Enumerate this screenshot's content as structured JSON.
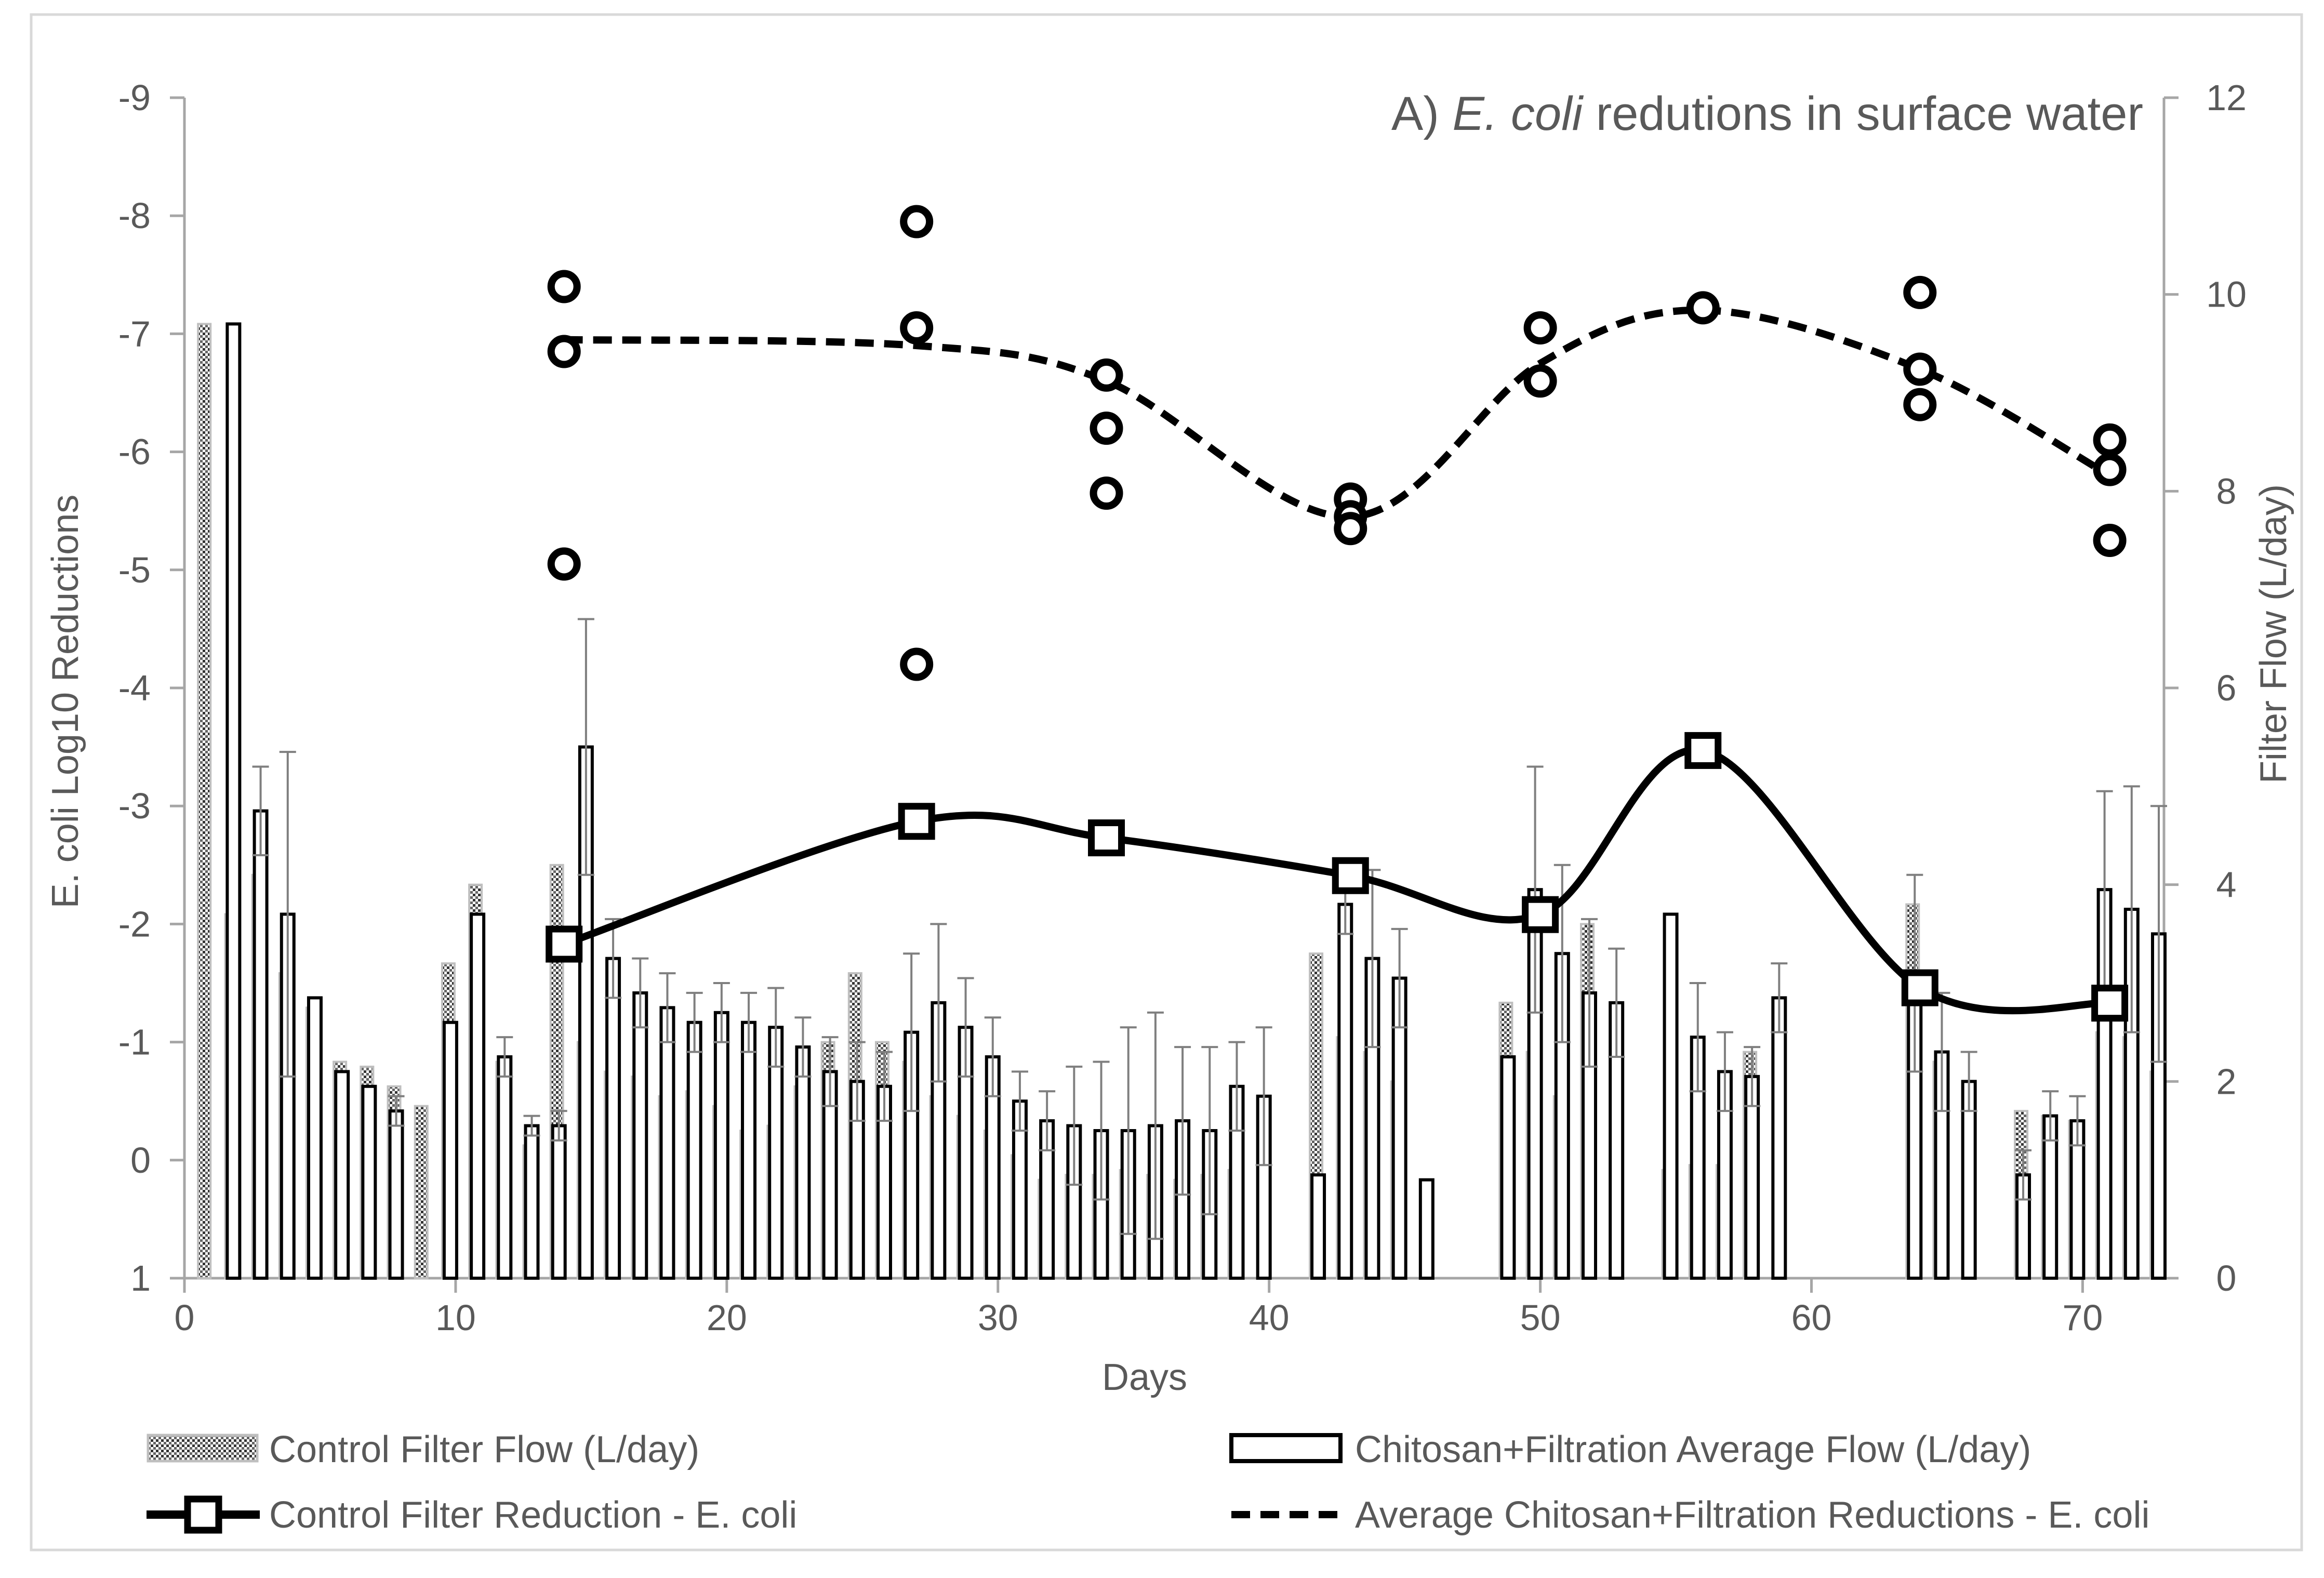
{
  "chart_data": {
    "type": "bar+line+scatter",
    "title_prefix": "A) ",
    "title_italic": "E. coli",
    "title_suffix": " redutions in surface water",
    "xlabel": "Days",
    "ylabel_left": "E. coli Log10 Reductions",
    "ylabel_right": "Filter Flow (L/day)",
    "xlim": [
      0,
      73
    ],
    "x_ticks": [
      0,
      10,
      20,
      30,
      40,
      50,
      60,
      70
    ],
    "x_tick_labels": [
      "0",
      "10",
      "20",
      "30",
      "40",
      "50",
      "60",
      "70"
    ],
    "ylim_left": [
      1,
      -9
    ],
    "y_left_ticks": [
      1,
      0,
      -1,
      -2,
      -3,
      -4,
      -5,
      -6,
      -7,
      -8,
      -9
    ],
    "y_left_tick_labels": [
      "1",
      "0",
      "-1",
      "-2",
      "-3",
      "-4",
      "-5",
      "-6",
      "-7",
      "-8",
      "-9"
    ],
    "ylim_right": [
      0,
      12
    ],
    "y_right_ticks": [
      0,
      2,
      4,
      6,
      8,
      10,
      12
    ],
    "y_right_tick_labels": [
      "0",
      "2",
      "4",
      "6",
      "8",
      "10",
      "12"
    ],
    "control_flow": {
      "name": "Control Filter Flow (L/day)",
      "x": [
        1,
        2,
        3,
        4,
        5,
        6,
        7,
        8,
        9,
        10,
        11,
        12,
        13,
        14,
        15,
        16,
        17,
        18,
        19,
        20,
        21,
        22,
        23,
        24,
        25,
        26,
        27,
        28,
        29,
        30,
        31,
        32,
        33,
        34,
        35,
        36,
        37,
        38,
        39,
        42,
        43,
        44,
        45,
        49,
        50,
        51,
        52,
        55,
        56,
        57,
        58,
        64,
        65,
        68,
        69,
        70,
        71,
        72,
        73
      ],
      "values": [
        9.7,
        3.7,
        4.1,
        3.1,
        2.75,
        2.2,
        2.15,
        1.95,
        1.75,
        3.2,
        4.0,
        2.2,
        1.35,
        4.2,
        2.4,
        2.1,
        2.05,
        1.85,
        1.9,
        1.75,
        1.5,
        1.55,
        1.95,
        2.4,
        3.1,
        2.4,
        2.2,
        1.85,
        1.65,
        1.5,
        1.25,
        1.0,
        1.05,
        1.05,
        1.1,
        1.05,
        1.0,
        1.05,
        1.1,
        3.3,
        2.45,
        2.3,
        2.0,
        2.8,
        2.3,
        1.85,
        3.6,
        1.1,
        1.15,
        1.15,
        2.3,
        3.8,
        2.2,
        1.7,
        1.65,
        1.6,
        2.5,
        2.45,
        2.1
      ]
    },
    "chitosan_flow": {
      "name": "Chitosan+Filtration Average Flow (L/day)",
      "x": [
        2,
        3,
        4,
        5,
        6,
        7,
        8,
        10,
        11,
        12,
        13,
        14,
        15,
        16,
        17,
        18,
        19,
        20,
        21,
        22,
        23,
        24,
        25,
        26,
        27,
        28,
        29,
        30,
        31,
        32,
        33,
        34,
        35,
        36,
        37,
        38,
        39,
        40,
        42,
        43,
        44,
        45,
        46,
        49,
        50,
        51,
        52,
        53,
        55,
        56,
        57,
        58,
        59,
        64,
        65,
        66,
        68,
        69,
        70,
        71,
        72,
        73
      ],
      "values": [
        9.7,
        4.75,
        3.7,
        2.85,
        2.1,
        1.95,
        1.7,
        2.6,
        3.7,
        2.25,
        1.55,
        1.55,
        5.4,
        3.25,
        2.9,
        2.75,
        2.6,
        2.7,
        2.6,
        2.55,
        2.35,
        2.1,
        2.0,
        1.95,
        2.5,
        2.8,
        2.55,
        2.25,
        1.8,
        1.6,
        1.55,
        1.5,
        1.5,
        1.55,
        1.6,
        1.5,
        1.95,
        1.85,
        1.05,
        3.8,
        3.25,
        3.05,
        1.0,
        2.25,
        3.95,
        3.3,
        2.9,
        2.8,
        3.7,
        2.45,
        2.1,
        2.05,
        2.85,
        3.1,
        2.3,
        2.0,
        1.05,
        1.65,
        1.6,
        3.95,
        3.75,
        3.5
      ],
      "error": [
        0,
        0.45,
        1.65,
        0,
        0,
        0,
        0.15,
        0,
        0,
        0.2,
        0.1,
        0.15,
        1.3,
        0.4,
        0.35,
        0.35,
        0.3,
        0.3,
        0.3,
        0.4,
        0.3,
        0.35,
        0.4,
        0.35,
        0.8,
        0.8,
        0.5,
        0.4,
        0.3,
        0.3,
        0.6,
        0.7,
        1.05,
        1.15,
        0.75,
        0.85,
        0.45,
        0.7,
        0,
        0.3,
        0.9,
        0.5,
        0,
        0,
        1.25,
        0.9,
        0.75,
        0.55,
        0,
        0.55,
        0.4,
        0.3,
        0.35,
        1.0,
        0.6,
        0.3,
        0.25,
        0.25,
        0.25,
        1.0,
        1.25,
        1.3
      ]
    },
    "control_reduction": {
      "name": "Control Filter Reduction - E. coli",
      "x": [
        14,
        27,
        34,
        43,
        50,
        56,
        64,
        71
      ],
      "values": [
        -1.83,
        -2.87,
        -2.73,
        -2.41,
        -2.08,
        -3.47,
        -1.46,
        -1.33
      ]
    },
    "chitosan_reduction_avg": {
      "name": "Average Chitosan+Filtration Reductions - E. coli",
      "x": [
        14,
        27,
        34,
        43,
        50,
        56,
        64,
        71
      ],
      "values": [
        -6.95,
        -6.9,
        -6.6,
        -5.45,
        -6.75,
        -7.2,
        -6.7,
        -5.8
      ]
    },
    "chitosan_reduction_points": {
      "x": [
        14,
        14,
        14,
        27,
        27,
        27,
        34,
        34,
        34,
        43,
        43,
        43,
        50,
        50,
        56,
        64,
        64,
        64,
        71,
        71,
        71
      ],
      "values": [
        -7.4,
        -6.85,
        -5.05,
        -7.95,
        -7.05,
        -4.2,
        -6.65,
        -6.2,
        -5.65,
        -5.6,
        -5.45,
        -5.35,
        -7.05,
        -6.6,
        -7.22,
        -7.35,
        -6.7,
        -6.4,
        -6.1,
        -5.85,
        -5.25
      ]
    },
    "legend": [
      "Control Filter Flow (L/day)",
      "Chitosan+Filtration Average Flow (L/day)",
      "Control Filter Reduction - E. coli",
      "Average Chitosan+Filtration Reductions - E. coli"
    ],
    "legend_position": "bottom",
    "colors": {
      "axis": "#a6a6a6",
      "text": "#595959",
      "series": "#000000",
      "control_bar_fill": "#d9d9d9",
      "chitosan_bar_fill": "#ffffff",
      "error_bar": "#7f7f7f"
    }
  }
}
